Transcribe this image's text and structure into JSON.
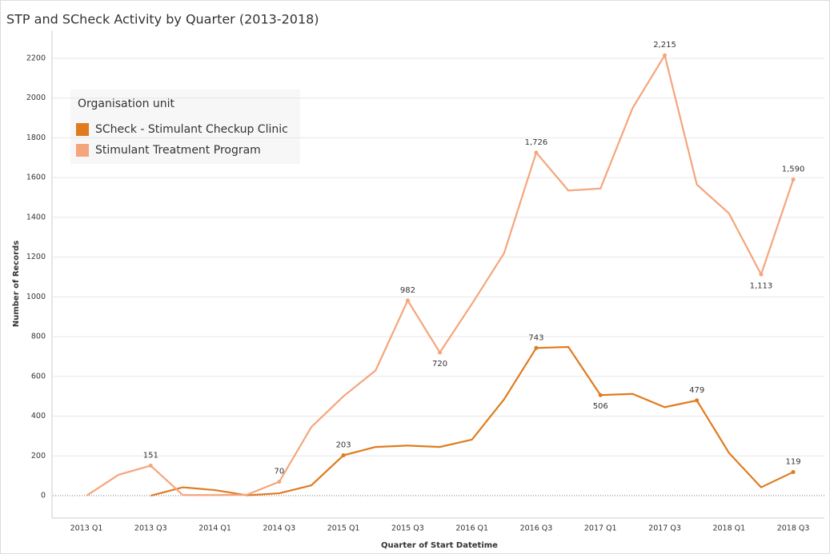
{
  "chart_data": {
    "type": "line",
    "title": "STP and SCheck Activity by Quarter (2013-2018)",
    "x_label": "Quarter of Start Datetime",
    "y_label": "Number of Records",
    "legend_title": "Organisation unit",
    "categories": [
      "2013 Q1",
      null,
      "2013 Q3",
      null,
      "2014 Q1",
      null,
      "2014 Q3",
      null,
      "2015 Q1",
      null,
      "2015 Q3",
      null,
      "2016 Q1",
      null,
      "2016 Q3",
      null,
      "2017 Q1",
      null,
      "2017 Q3",
      null,
      "2018 Q1",
      null,
      "2018 Q3"
    ],
    "series": [
      {
        "name": "SCheck - Stimulant Checkup Clinic",
        "color": "#e07b1f",
        "values": [
          null,
          null,
          0,
          42,
          28,
          2,
          12,
          52,
          203,
          245,
          252,
          245,
          282,
          485,
          743,
          748,
          506,
          512,
          445,
          479,
          215,
          42,
          119
        ],
        "value_labels": [
          null,
          null,
          null,
          null,
          null,
          null,
          null,
          null,
          "203",
          null,
          null,
          null,
          null,
          null,
          "743",
          null,
          "506",
          null,
          null,
          "479",
          null,
          null,
          "119"
        ]
      },
      {
        "name": "Stimulant Treatment Program",
        "color": "#f5a57c",
        "values": [
          0,
          105,
          151,
          3,
          3,
          5,
          70,
          345,
          500,
          630,
          982,
          720,
          965,
          1220,
          1726,
          1535,
          1545,
          1950,
          2215,
          1565,
          1420,
          1113,
          1590
        ],
        "value_labels": [
          null,
          null,
          "151",
          null,
          null,
          null,
          "70",
          null,
          null,
          null,
          "982",
          "720",
          null,
          null,
          "1,726",
          null,
          null,
          null,
          "2,215",
          null,
          null,
          "1,113",
          "1,590"
        ]
      }
    ],
    "ylim": [
      -100,
      2300
    ],
    "yticks": [
      0,
      200,
      400,
      600,
      800,
      1000,
      1200,
      1400,
      1600,
      1800,
      2000,
      2200
    ],
    "grid": true
  }
}
